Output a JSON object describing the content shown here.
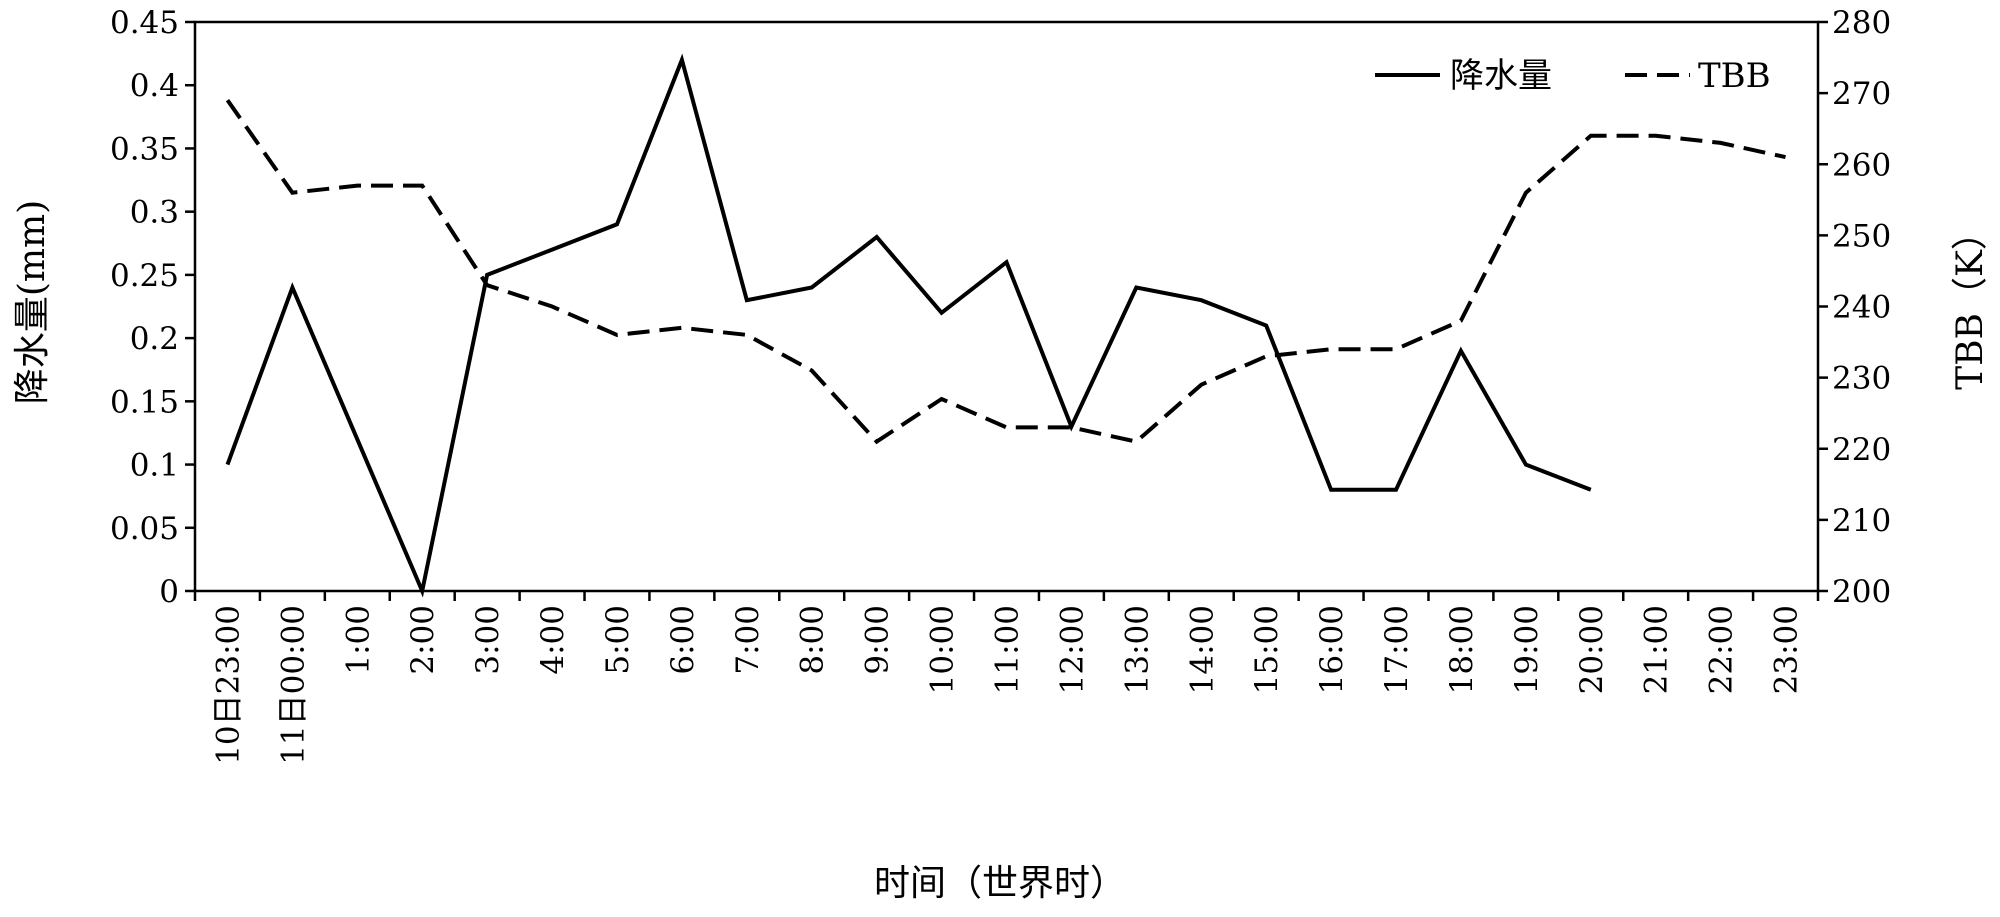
{
  "chart_data": {
    "type": "line",
    "categories": [
      "10日23:00",
      "11日00:00",
      "1:00",
      "2:00",
      "3:00",
      "4:00",
      "5:00",
      "6:00",
      "7:00",
      "8:00",
      "9:00",
      "10:00",
      "11:00",
      "12:00",
      "13:00",
      "14:00",
      "15:00",
      "16:00",
      "17:00",
      "18:00",
      "19:00",
      "20:00",
      "21:00",
      "22:00",
      "23:00"
    ],
    "series": [
      {
        "name": "降水量",
        "axis": "left",
        "line_style": "solid",
        "color": "#000000",
        "values": [
          0.1,
          0.24,
          0.12,
          0.0,
          0.25,
          0.27,
          0.29,
          0.42,
          0.23,
          0.24,
          0.28,
          0.22,
          0.26,
          0.13,
          0.24,
          0.23,
          0.21,
          0.08,
          0.08,
          0.19,
          0.1,
          0.08,
          null,
          null,
          null
        ]
      },
      {
        "name": "TBB",
        "axis": "right",
        "line_style": "dashed",
        "color": "#000000",
        "values": [
          269,
          256,
          257,
          257,
          243,
          240,
          236,
          237,
          236,
          231,
          221,
          227,
          223,
          223,
          221,
          229,
          233,
          234,
          234,
          238,
          256,
          264,
          264,
          263,
          261
        ]
      }
    ],
    "xlabel": "时间（世界时）",
    "ylabel_left": "降水量(mm)",
    "ylabel_right": "TBB（K）",
    "ylim_left": [
      0,
      0.45
    ],
    "yticks_left": [
      "0",
      "0.05",
      "0.1",
      "0.15",
      "0.2",
      "0.25",
      "0.3",
      "0.35",
      "0.4",
      "0.45"
    ],
    "ylim_right": [
      200,
      280
    ],
    "yticks_right": [
      "200",
      "210",
      "220",
      "230",
      "240",
      "250",
      "260",
      "270",
      "280"
    ],
    "legend_position": "top-right",
    "grid": false
  }
}
